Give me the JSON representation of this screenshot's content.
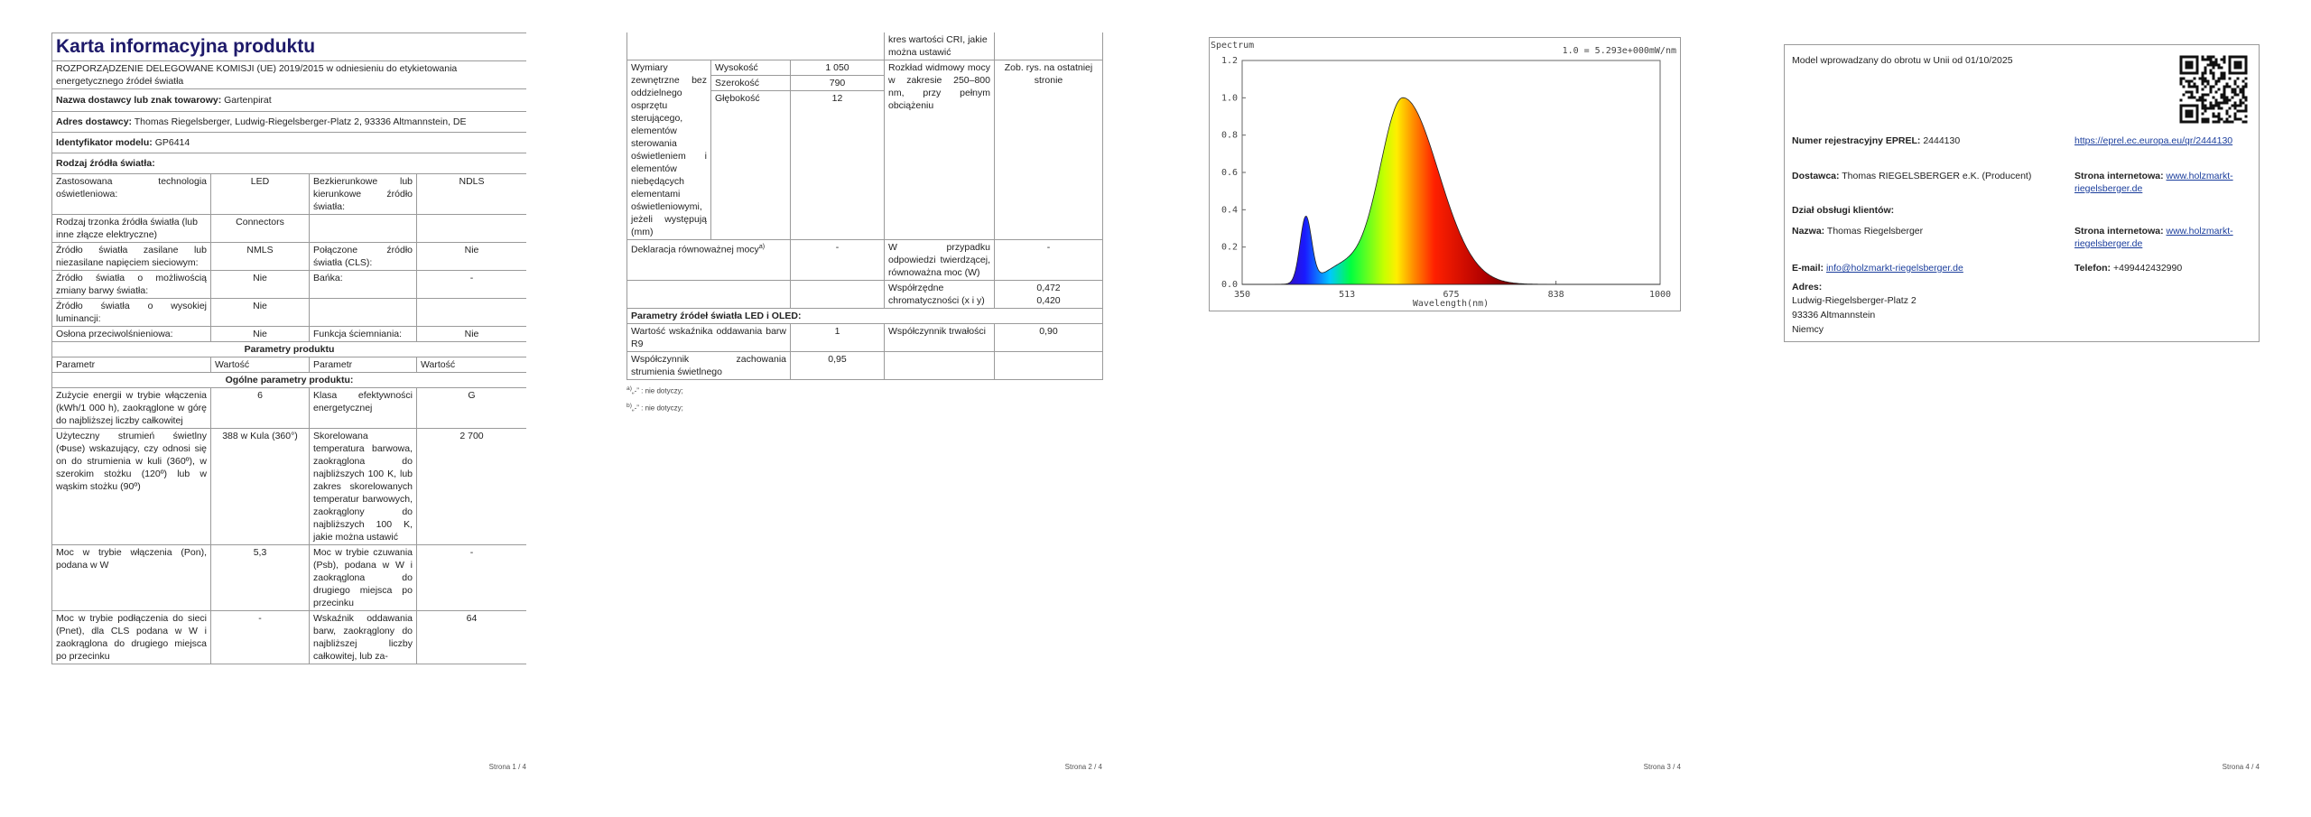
{
  "page1": {
    "title": "Karta informacyjna produktu",
    "regulation": "ROZPORZĄDZENIE DELEGOWANE KOMISJI (UE) 2019/2015 w odniesieniu do etykietowania energetycznego źródeł światła",
    "supplier": {
      "label": "Nazwa dostawcy lub znak towarowy:",
      "value": "Gartenpirat"
    },
    "address": {
      "label": "Adres dostawcy:",
      "value": "Thomas Riegelsberger, Ludwig-Riegelsberger-Platz 2, 93336 Altmannstein, DE"
    },
    "model_id": {
      "label": "Identyfikator modelu:",
      "value": "GP6414"
    },
    "light_source_type": "Rodzaj źródła światła:",
    "source_rows": [
      [
        "Zastosowana technologia oświetleniowa:",
        "LED",
        "Bezkierunkowe lub kierunkowe źródło światła:",
        "NDLS"
      ],
      [
        "Rodzaj trzonka źródła światła (lub inne złącze elektryczne)",
        "Connectors"
      ],
      [
        "Źródło światła zasilane lub niezasilane napięciem sieciowym:",
        "NMLS",
        "Połączone źródło światła (CLS):",
        "Nie"
      ],
      [
        "Źródło światła o możliwością zmiany barwy światła:",
        "Nie",
        "Bańka:",
        "-"
      ],
      [
        "Źródło światła o wysokiej luminancji:",
        "Nie"
      ],
      [
        "Osłona przeciwolśnieniowa:",
        "Nie",
        "Funkcja ściemniania:",
        "Nie"
      ]
    ],
    "params_heading": "Parametry produktu",
    "param_header": [
      "Parametr",
      "Wartość",
      "Parametr",
      "Wartość"
    ],
    "general_heading": "Ogólne parametry produktu:",
    "param_rows": [
      [
        "Zużycie energii w trybie włączenia (kWh/1 000 h), zaokrąglone w górę do najbliższej liczby całkowitej",
        "6",
        "Klasa efektywności energetycznej",
        "G"
      ],
      [
        "Użyteczny strumień świetlny (Φuse) wskazujący, czy odnosi się on do strumienia w kuli (360º), w szerokim stożku (120º) lub w wąskim stożku (90º)",
        "388 w Kula (360°)",
        "Skorelowana temperatura barwowa, zaokrąglona do najbliższych 100 K, lub zakres skorelowanych temperatur barwowych, zaokrąglony do najbliższych 100 K, jakie można ustawić",
        "2 700"
      ],
      [
        "Moc w trybie włączenia (Pon), podana w W",
        "5,3",
        "Moc w trybie czuwania (Psb), podana w W i zaokrąglona do drugiego miejsca po przecinku",
        "-"
      ],
      [
        "Moc w trybie podłączenia do sieci (Pnet), dla CLS podana w W i zaokrąglona do drugiego miejsca po przecinku",
        "-",
        "Wskaźnik oddawania barw, zaokrąglony do najbliższej liczby całkowitej, lub za-",
        "64"
      ]
    ],
    "footer": "Strona 1 / 4"
  },
  "page2": {
    "continued_cell": "kres wartości CRI, jakie można ustawić",
    "dimensions": {
      "label": "Wymiary zewnętrzne bez oddzielnego osprzętu sterującego, elementów sterowania oświetleniem i elementów niebędących elementami oświetleniowymi, jeżeli występują (mm)",
      "rows": [
        [
          "Wysokość",
          "1 050"
        ],
        [
          "Szerokość",
          "790"
        ],
        [
          "Głębokość",
          "12"
        ]
      ]
    },
    "spectrum": [
      "Rozkład widmowy mocy w zakresie 250–800 nm, przy pełnym obciążeniu",
      "Zob. rys. na ostatniej stronie"
    ],
    "equivalent_power": {
      "label": "Deklaracja równoważnej mocy",
      "ref": "a)",
      "value": "-",
      "param": "W przypadku odpowiedzi twierdzącej, równoważna moc (W)",
      "param_value": "-"
    },
    "chromaticity": {
      "label": "Współrzędne chromatyczności (x i y)",
      "values": [
        "0,472",
        "0,420"
      ]
    },
    "led_heading": "Parametry źródeł światła LED i OLED:",
    "led_rows": [
      [
        "Wartość wskaźnika oddawania barw R9",
        "1",
        "Współczynnik trwałości",
        "0,90"
      ],
      [
        "Współczynnik zachowania strumienia świetlnego",
        "0,95"
      ]
    ],
    "footnotes": [
      {
        "mark": "a)",
        "text": "„-” : nie dotyczy;"
      },
      {
        "mark": "b)",
        "text": "„-” : nie dotyczy;"
      }
    ],
    "footer": "Strona 2 / 4"
  },
  "page3": {
    "chart": {
      "title": "Spectrum",
      "scale_note": "1.0 = 5.293e+000mW/nm",
      "y_ticks": [
        "1.2",
        "1.0",
        "0.8",
        "0.6",
        "0.4",
        "0.2",
        "0.0"
      ],
      "x_ticks": [
        "350",
        "513",
        "675",
        "838",
        "1000"
      ],
      "x_label": "Wavelength(nm)"
    },
    "footer": "Strona 3 / 4"
  },
  "page4": {
    "market_note": "Model wprowadzany do obrotu w Unii od 01/10/2025",
    "eprel": {
      "label": "Numer rejestracyjny EPREL:",
      "value": "2444130",
      "link": "https://eprel.ec.europa.eu/qr/2444130"
    },
    "supplier": {
      "label": "Dostawca:",
      "value": "Thomas RIEGELSBERGER e.K. (Producent)",
      "web_label": "Strona internetowa:",
      "web": "www.holzmarkt-riegelsberger.de"
    },
    "service_heading": "Dział obsługi klientów:",
    "service": {
      "name_label": "Nazwa:",
      "name": "Thomas Riegelsberger",
      "web_label": "Strona internetowa:",
      "web": "www.holzmarkt-riegelsberger.de",
      "email_label": "E-mail:",
      "email": "info@holzmarkt-riegelsberger.de",
      "phone_label": "Telefon:",
      "phone": "+499442432990"
    },
    "address": {
      "label": "Adres:",
      "lines": [
        "Ludwig-Riegelsberger-Platz 2",
        "93336 Altmannstein",
        "Niemcy"
      ]
    },
    "footer": "Strona 4 / 4"
  }
}
